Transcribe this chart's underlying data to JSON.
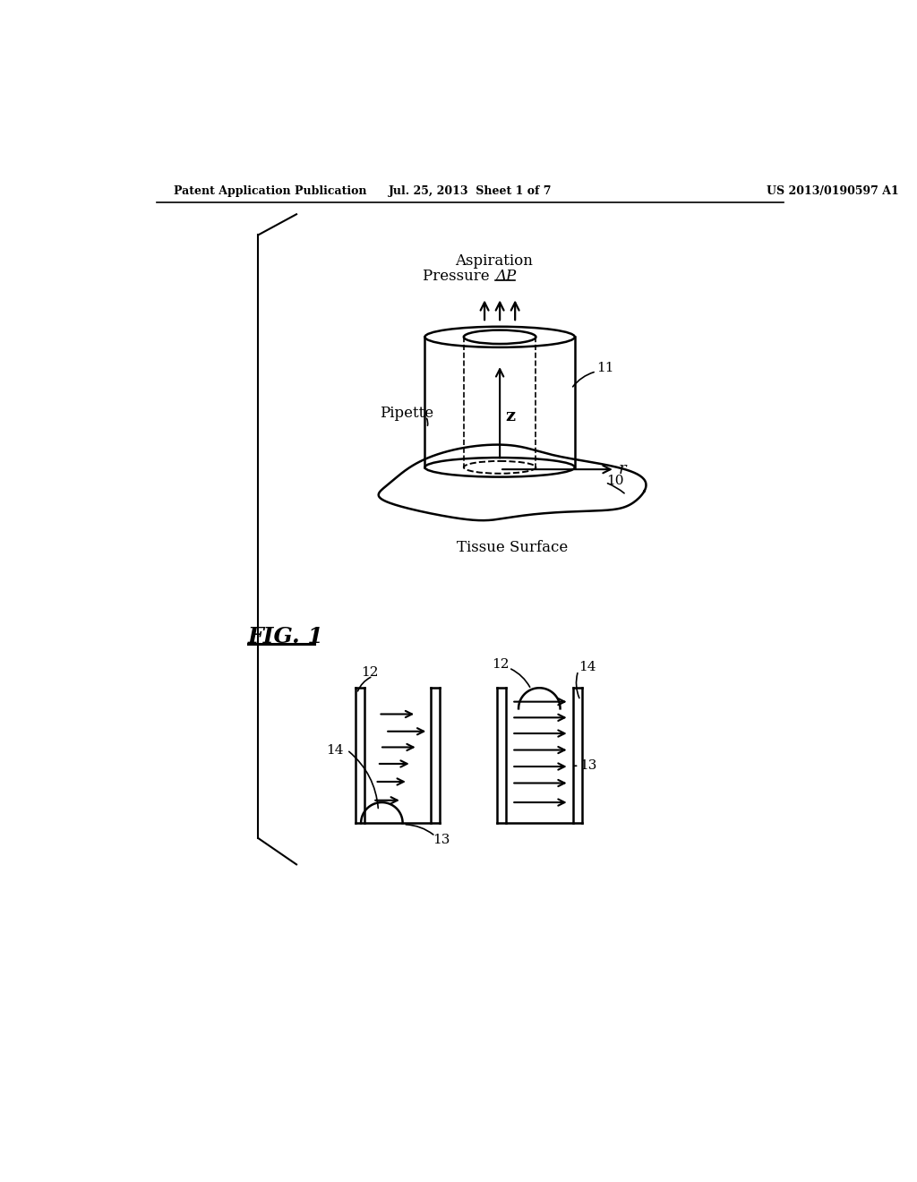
{
  "background_color": "#ffffff",
  "header_left": "Patent Application Publication",
  "header_center": "Jul. 25, 2013  Sheet 1 of 7",
  "header_right": "US 2013/0190597 A1",
  "fig1_label": "FIG. 1",
  "label_aspiration_line1": "Aspiration",
  "label_aspiration_line2": "Pressure ΔP",
  "label_pipette": "Pipette",
  "label_tissue": "Tissue Surface",
  "label_z": "z",
  "label_r": "r",
  "ref_11": "11",
  "ref_10": "10",
  "ref_12a": "12",
  "ref_12b": "12",
  "ref_13a": "13",
  "ref_13b": "13",
  "ref_14a": "14",
  "ref_14b": "14"
}
